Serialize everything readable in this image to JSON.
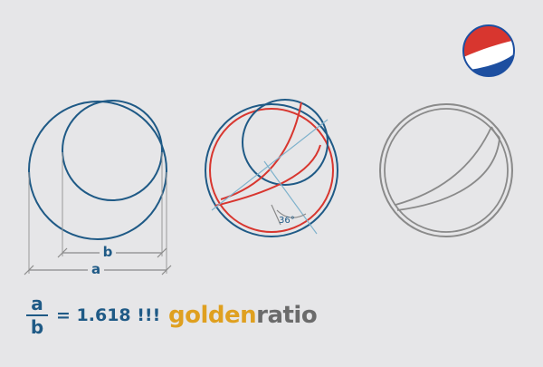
{
  "diagram": {
    "label_b": "b",
    "label_a": "a",
    "angle_label": "36°"
  },
  "formula": {
    "numerator": "a",
    "denominator": "b",
    "equation": "= 1.618 !!!"
  },
  "brand": {
    "word1": "golden",
    "word2": "ratio"
  },
  "colors": {
    "blue": "#1f5a86",
    "red": "#d8362f",
    "gray": "#8a8a8a",
    "gold": "#dfa020",
    "background": "#e6e6e8"
  },
  "icons": {
    "logo": "pepsi-globe-icon"
  }
}
